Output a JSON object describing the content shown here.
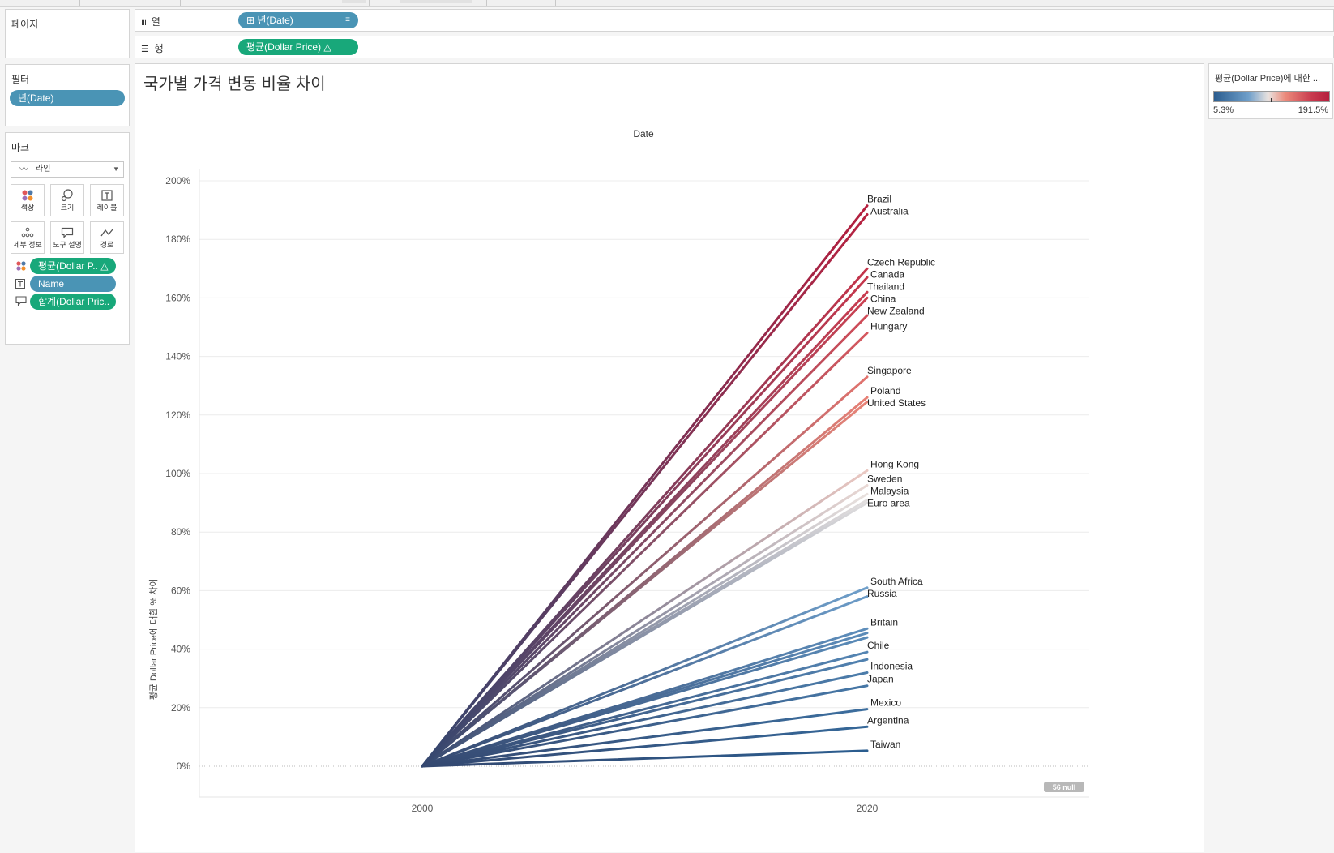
{
  "pages_panel": {
    "title": "페이지"
  },
  "filters_panel": {
    "title": "필터",
    "filter_pill": "년(Date)"
  },
  "marks_panel": {
    "title": "마크",
    "mark_type": "라인",
    "buttons": [
      {
        "label": "색상",
        "icon": "color-icon"
      },
      {
        "label": "크기",
        "icon": "size-icon"
      },
      {
        "label": "레이블",
        "icon": "label-icon"
      },
      {
        "label": "세부 정보",
        "icon": "detail-icon"
      },
      {
        "label": "도구 설명",
        "icon": "tooltip-icon"
      },
      {
        "label": "경로",
        "icon": "path-icon"
      }
    ],
    "fields": [
      {
        "label": "평균(Dollar P.. △",
        "type": "color"
      },
      {
        "label": "Name",
        "type": "text"
      },
      {
        "label": "합계(Dollar Pric..",
        "type": "tooltip"
      }
    ]
  },
  "shelves": {
    "columns": {
      "label": "열",
      "pill": "⊞ 년(Date)"
    },
    "rows": {
      "label": "행",
      "pill": "평균(Dollar Price)   △"
    }
  },
  "chart": {
    "title": "국가별 가격 변동 비율 차이",
    "null_badge": "56 null"
  },
  "color_legend": {
    "title": "평균(Dollar Price)에 대한 ...",
    "min_label": "5.3%",
    "max_label": "191.5%"
  },
  "colors": {
    "accent_blue": "#4a94b5",
    "accent_green": "#18a87a",
    "low": "#2b5d8f",
    "high": "#b51f3e"
  },
  "chart_data": {
    "type": "line",
    "title": "국가별 가격 변동 비율 차이",
    "top_axis_title": "Date",
    "xlabel": "",
    "ylabel": "평균 Dollar Price에 대한 % 차이",
    "x_ticks": [
      "2000",
      "2020"
    ],
    "x_values": [
      2000,
      2020
    ],
    "ylim": [
      -10,
      202
    ],
    "y_ticks": [
      0,
      20,
      40,
      60,
      80,
      100,
      120,
      140,
      160,
      180,
      200
    ],
    "y_tick_labels": [
      "0%",
      "20%",
      "40%",
      "60%",
      "80%",
      "100%",
      "120%",
      "140%",
      "160%",
      "180%",
      "200%"
    ],
    "color_range": [
      5.3,
      191.5
    ],
    "series": [
      {
        "name": "Brazil",
        "values": [
          0,
          191.5
        ]
      },
      {
        "name": "Australia",
        "values": [
          0,
          188.5
        ]
      },
      {
        "name": "Czech Republic",
        "values": [
          0,
          170
        ]
      },
      {
        "name": "Canada",
        "values": [
          0,
          167
        ]
      },
      {
        "name": "Thailand",
        "values": [
          0,
          162
        ]
      },
      {
        "name": "China",
        "values": [
          0,
          160
        ]
      },
      {
        "name": "New Zealand",
        "values": [
          0,
          154
        ]
      },
      {
        "name": "Hungary",
        "values": [
          0,
          148
        ]
      },
      {
        "name": "Singapore",
        "values": [
          0,
          133
        ]
      },
      {
        "name": "Poland",
        "values": [
          0,
          126
        ]
      },
      {
        "name": "United States",
        "values": [
          0,
          124.5
        ]
      },
      {
        "name": "Hong Kong",
        "values": [
          0,
          101
        ]
      },
      {
        "name": "Sweden",
        "values": [
          0,
          96
        ]
      },
      {
        "name": "Malaysia",
        "values": [
          0,
          93
        ]
      },
      {
        "name": "Euro area",
        "values": [
          0,
          91
        ]
      },
      {
        "name": "South Africa",
        "values": [
          0,
          61
        ]
      },
      {
        "name": "Russia",
        "values": [
          0,
          58
        ]
      },
      {
        "name": "Britain",
        "values": [
          0,
          47
        ]
      },
      {
        "name": "Chile",
        "values": [
          0,
          39
        ]
      },
      {
        "name": "Indonesia",
        "values": [
          0,
          32
        ]
      },
      {
        "name": "Japan",
        "values": [
          0,
          27.5
        ]
      },
      {
        "name": "Mexico",
        "values": [
          0,
          19.5
        ]
      },
      {
        "name": "Argentina",
        "values": [
          0,
          13.5
        ]
      },
      {
        "name": "Taiwan",
        "values": [
          0,
          5.3
        ]
      }
    ],
    "unlabeled_series": [
      {
        "values": [
          0,
          45.5
        ]
      },
      {
        "values": [
          0,
          44
        ]
      },
      {
        "values": [
          0,
          36.5
        ]
      },
      {
        "values": [
          0,
          90
        ]
      }
    ]
  }
}
